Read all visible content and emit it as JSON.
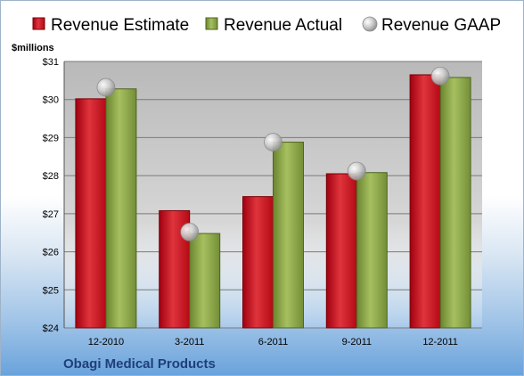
{
  "chart_data": {
    "type": "bar",
    "categories": [
      "12-2010",
      "3-2011",
      "6-2011",
      "9-2011",
      "12-2011"
    ],
    "series": [
      {
        "name": "Revenue Estimate",
        "kind": "bar",
        "color": "#c0101c",
        "values": [
          30.02,
          27.08,
          27.45,
          28.05,
          30.65
        ]
      },
      {
        "name": "Revenue Actual",
        "kind": "bar",
        "color": "#7f9a3c",
        "values": [
          30.28,
          26.48,
          28.88,
          28.08,
          30.58
        ]
      },
      {
        "name": "Revenue GAAP",
        "kind": "marker",
        "color": "#b8b8b8",
        "values": [
          30.32,
          26.52,
          28.88,
          28.12,
          30.62
        ]
      }
    ],
    "ylabel": "$millions",
    "ylim": [
      24,
      31
    ],
    "yticks": [
      "$24",
      "$25",
      "$26",
      "$27",
      "$28",
      "$29",
      "$30",
      "$31"
    ],
    "grid": true,
    "legend_position": "top",
    "company": "Obagi Medical Products"
  }
}
